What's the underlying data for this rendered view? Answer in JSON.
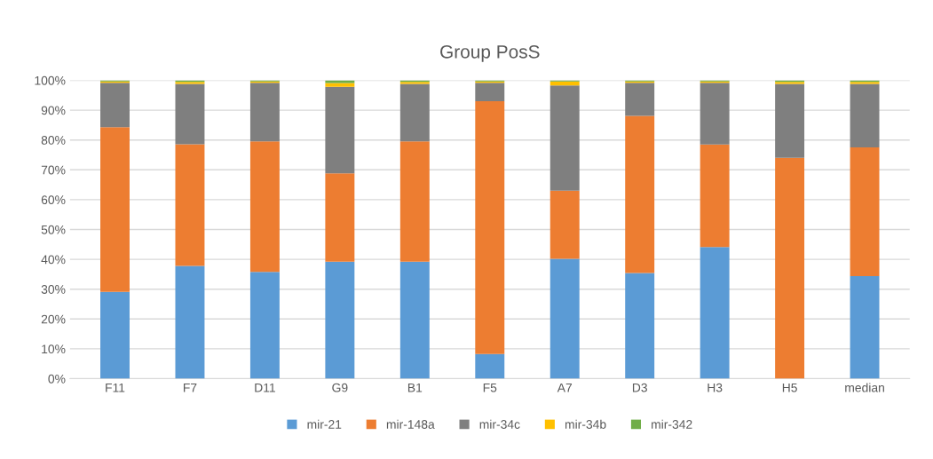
{
  "chart_data": {
    "type": "bar",
    "title": "Group PosS",
    "stacked": true,
    "grid": "y",
    "legend": "bottom",
    "categories": [
      "F11",
      "F7",
      "D11",
      "G9",
      "B1",
      "F5",
      "A7",
      "D3",
      "H3",
      "H5",
      "median"
    ],
    "ylim": [
      0,
      100
    ],
    "yticks": [
      {
        "value": 0,
        "label": "0%"
      },
      {
        "value": 10,
        "label": "10%"
      },
      {
        "value": 20,
        "label": "20%"
      },
      {
        "value": 30,
        "label": "30%"
      },
      {
        "value": 40,
        "label": "40%"
      },
      {
        "value": 50,
        "label": "50%"
      },
      {
        "value": 60,
        "label": "60%"
      },
      {
        "value": 70,
        "label": "70%"
      },
      {
        "value": 80,
        "label": "80%"
      },
      {
        "value": 90,
        "label": "90%"
      },
      {
        "value": 100,
        "label": "100%"
      }
    ],
    "series": [
      {
        "name": "mir-21",
        "color": "#5b9bd5",
        "values": [
          29.1,
          37.8,
          35.8,
          39.2,
          39.2,
          8.3,
          40.2,
          35.4,
          44.1,
          0,
          34.4
        ]
      },
      {
        "name": "mir-148a",
        "color": "#ed7d31",
        "values": [
          55.2,
          40.8,
          43.7,
          29.6,
          40.3,
          84.7,
          22.8,
          52.7,
          34.4,
          74.0,
          43.1
        ]
      },
      {
        "name": "mir-34c",
        "color": "#7f7f7f",
        "values": [
          14.9,
          20.2,
          19.7,
          29.0,
          19.3,
          6.2,
          35.3,
          11.1,
          20.7,
          24.8,
          21.3
        ]
      },
      {
        "name": "mir-34b",
        "color": "#ffc000",
        "values": [
          0.4,
          0.7,
          0.4,
          1.3,
          0.7,
          0.4,
          1.3,
          0.4,
          0.4,
          0.7,
          0.7
        ]
      },
      {
        "name": "mir-342",
        "color": "#70ad47",
        "values": [
          0.4,
          0.5,
          0.4,
          0.9,
          0.5,
          0.4,
          0.4,
          0.4,
          0.4,
          0.5,
          0.5
        ]
      }
    ]
  }
}
